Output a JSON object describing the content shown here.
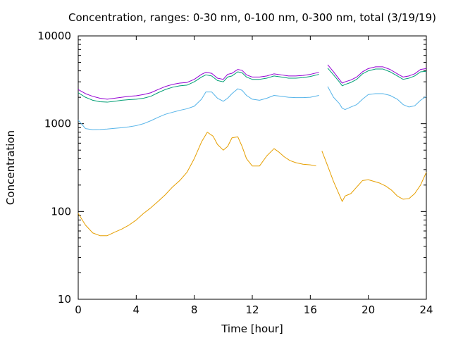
{
  "chart_data": {
    "type": "line",
    "title": "Concentration, ranges: 0-30 nm, 0-100 nm, 0-300 nm, total (3/19/19)",
    "xlabel": "Time [hour]",
    "ylabel": "Concentration",
    "xlim": [
      0,
      24
    ],
    "ylim": [
      10,
      10000
    ],
    "yscale": "log",
    "grid": false,
    "legend": "none",
    "xticks": [
      0,
      4,
      8,
      12,
      16,
      20,
      24
    ],
    "xtick_labels": [
      "0",
      "4",
      "8",
      "12",
      "16",
      "20",
      "24"
    ],
    "yticks": [
      10,
      100,
      1000,
      10000
    ],
    "ytick_labels": [
      "10",
      "100",
      "1000",
      "10000"
    ],
    "series": [
      {
        "color": "#e69f00",
        "x": [
          0,
          0.5,
          1,
          1.5,
          2,
          2.5,
          3,
          3.5,
          4,
          4.5,
          5,
          5.5,
          6,
          6.5,
          7,
          7.5,
          8,
          8.5,
          8.9,
          9.3,
          9.6,
          10,
          10.3,
          10.6,
          11,
          11.3,
          11.6,
          12,
          12.5,
          13,
          13.5,
          13.8,
          14.2,
          14.6,
          15,
          15.5,
          16,
          16.4,
          16.6,
          16.8,
          17.2,
          17.6,
          18,
          18.2,
          18.4,
          18.8,
          19.2,
          19.6,
          20,
          20.4,
          20.8,
          21.2,
          21.6,
          22,
          22.4,
          22.8,
          23.2,
          23.6,
          24
        ],
        "y": [
          95,
          70,
          57,
          53,
          53,
          58,
          63,
          70,
          80,
          95,
          110,
          130,
          155,
          190,
          225,
          280,
          400,
          620,
          800,
          720,
          580,
          500,
          550,
          690,
          710,
          550,
          400,
          330,
          330,
          430,
          520,
          480,
          420,
          380,
          360,
          345,
          340,
          330,
          null,
          490,
          330,
          220,
          155,
          130,
          150,
          160,
          190,
          225,
          230,
          220,
          210,
          195,
          175,
          150,
          138,
          140,
          160,
          200,
          280
        ],
        "note": "0-30 nm"
      },
      {
        "color": "#56b4e9",
        "x": [
          0,
          0.5,
          1,
          1.5,
          2,
          2.5,
          3,
          3.5,
          4,
          4.5,
          5,
          5.5,
          6,
          6.5,
          7,
          7.5,
          8,
          8.5,
          8.8,
          9.2,
          9.6,
          10,
          10.3,
          10.6,
          11,
          11.3,
          11.6,
          12,
          12.5,
          13,
          13.5,
          14,
          14.5,
          15,
          15.5,
          16,
          16.6,
          16.8,
          17.2,
          17.6,
          18,
          18.2,
          18.4,
          18.8,
          19.2,
          19.6,
          20,
          20.5,
          21,
          21.5,
          22,
          22.4,
          22.8,
          23.2,
          23.6,
          24
        ],
        "y": [
          1100,
          880,
          855,
          860,
          870,
          885,
          900,
          920,
          950,
          1000,
          1080,
          1180,
          1280,
          1350,
          1420,
          1480,
          1580,
          1900,
          2300,
          2300,
          1950,
          1800,
          1950,
          2200,
          2500,
          2400,
          2100,
          1900,
          1850,
          1950,
          2100,
          2050,
          2000,
          1980,
          1980,
          2000,
          2100,
          null,
          2650,
          2000,
          1700,
          1500,
          1450,
          1550,
          1650,
          1900,
          2150,
          2200,
          2200,
          2100,
          1900,
          1650,
          1550,
          1600,
          1850,
          2050
        ],
        "note": "0-100 nm"
      },
      {
        "color": "#009e73",
        "x": [
          0,
          0.5,
          1,
          1.5,
          2,
          2.5,
          3,
          3.5,
          4,
          4.5,
          5,
          5.5,
          6,
          6.5,
          7,
          7.5,
          8,
          8.5,
          8.8,
          9.2,
          9.6,
          10,
          10.3,
          10.6,
          11,
          11.3,
          11.6,
          12,
          12.5,
          13,
          13.5,
          14,
          14.5,
          15,
          15.5,
          16,
          16.6,
          16.8,
          17.2,
          17.6,
          18,
          18.2,
          18.4,
          18.8,
          19.2,
          19.6,
          20,
          20.5,
          21,
          21.5,
          22,
          22.4,
          22.8,
          23.2,
          23.6,
          24
        ],
        "y": [
          2250,
          2000,
          1850,
          1780,
          1760,
          1800,
          1850,
          1880,
          1900,
          1950,
          2050,
          2250,
          2450,
          2600,
          2700,
          2750,
          3000,
          3400,
          3600,
          3500,
          3100,
          3000,
          3400,
          3500,
          3900,
          3800,
          3400,
          3200,
          3200,
          3300,
          3500,
          3400,
          3300,
          3300,
          3350,
          3450,
          3650,
          null,
          4300,
          3600,
          3000,
          2700,
          2800,
          2950,
          3200,
          3700,
          4000,
          4200,
          4200,
          3900,
          3500,
          3200,
          3300,
          3500,
          3900,
          3950
        ],
        "note": "0-300 nm"
      },
      {
        "color": "#9400d3",
        "x": [
          0,
          0.5,
          1,
          1.5,
          2,
          2.5,
          3,
          3.5,
          4,
          4.5,
          5,
          5.5,
          6,
          6.5,
          7,
          7.5,
          8,
          8.5,
          8.8,
          9.2,
          9.6,
          10,
          10.3,
          10.6,
          11,
          11.3,
          11.6,
          12,
          12.5,
          13,
          13.5,
          14,
          14.5,
          15,
          15.5,
          16,
          16.6,
          16.8,
          17.2,
          17.6,
          18,
          18.2,
          18.4,
          18.8,
          19.2,
          19.6,
          20,
          20.5,
          21,
          21.5,
          22,
          22.4,
          22.8,
          23.2,
          23.6,
          24
        ],
        "y": [
          2450,
          2200,
          2050,
          1950,
          1900,
          1950,
          2000,
          2050,
          2080,
          2150,
          2250,
          2450,
          2650,
          2800,
          2900,
          2950,
          3200,
          3650,
          3850,
          3750,
          3300,
          3200,
          3650,
          3750,
          4150,
          4050,
          3600,
          3400,
          3400,
          3500,
          3700,
          3600,
          3500,
          3500,
          3550,
          3650,
          3850,
          null,
          4700,
          3900,
          3200,
          2900,
          3000,
          3150,
          3400,
          3900,
          4250,
          4450,
          4450,
          4150,
          3700,
          3400,
          3500,
          3700,
          4150,
          4250
        ],
        "note": "total"
      }
    ]
  }
}
